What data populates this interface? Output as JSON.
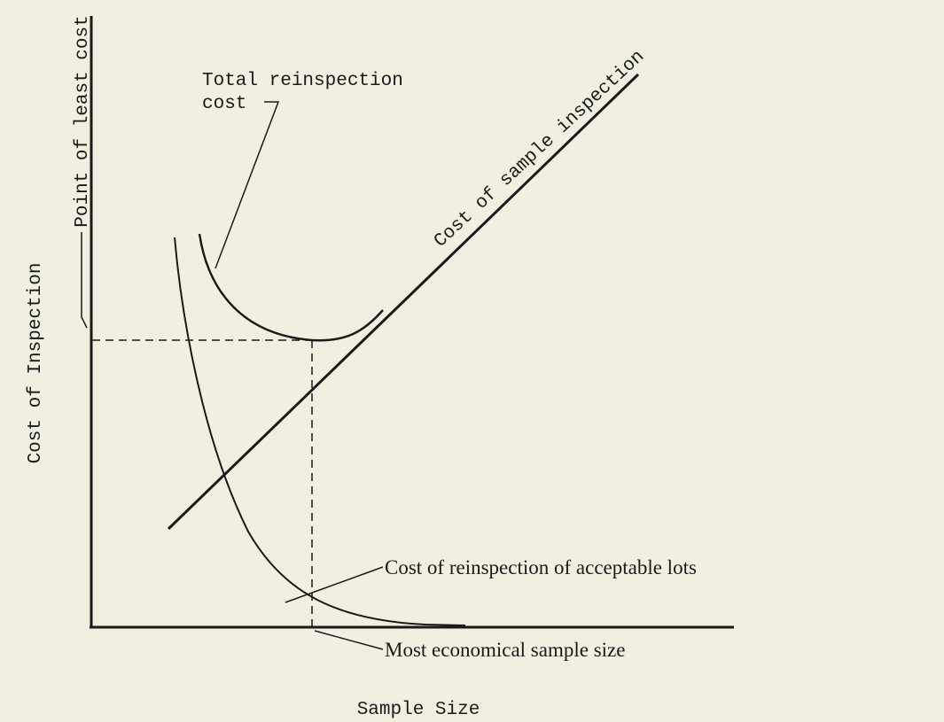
{
  "axis_labels": {
    "y": "Cost of Inspection",
    "x": "Sample Size"
  },
  "annotations": {
    "total_reinspection": [
      "Total reinspection",
      "cost"
    ],
    "sample_inspection": "Cost of sample inspection",
    "reinspection_acceptable": "Cost of reinspection of acceptable lots",
    "least_cost": "Point of least cost",
    "economical_size": "Most economical sample size"
  }
}
